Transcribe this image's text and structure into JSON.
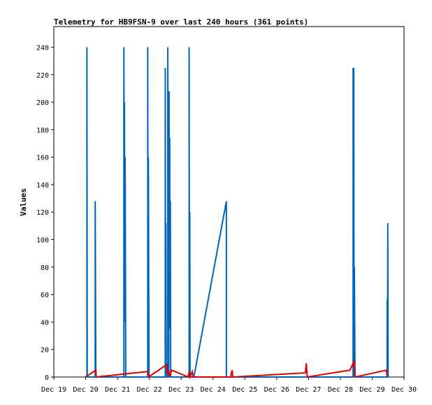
{
  "chart_data": {
    "type": "line",
    "title": "Telemetry for HB9FSN-9 over last 240 hours (361 points)",
    "ylabel": "Values",
    "xlabel": "",
    "ylim": [
      0,
      255
    ],
    "yticks": [
      0,
      20,
      40,
      60,
      80,
      100,
      120,
      140,
      160,
      180,
      200,
      220,
      240
    ],
    "xlim": [
      0,
      11
    ],
    "xticks": [
      {
        "x": 0,
        "label": "Dec 19"
      },
      {
        "x": 1,
        "label": "Dec 20"
      },
      {
        "x": 2,
        "label": "Dec 21"
      },
      {
        "x": 3,
        "label": "Dec 22"
      },
      {
        "x": 4,
        "label": "Dec 23"
      },
      {
        "x": 5,
        "label": "Dec 24"
      },
      {
        "x": 6,
        "label": "Dec 25"
      },
      {
        "x": 7,
        "label": "Dec 26"
      },
      {
        "x": 8,
        "label": "Dec 27"
      },
      {
        "x": 9,
        "label": "Dec 28"
      },
      {
        "x": 10,
        "label": "Dec 29"
      },
      {
        "x": 11,
        "label": "Dec 30"
      }
    ],
    "grid": false,
    "legend": "none",
    "colors": {
      "series1": "#0066bb",
      "series2": "#dd0000",
      "axis": "#000000",
      "border": "#000000"
    },
    "series": [
      {
        "color": "#0066bb",
        "points": [
          [
            1.04,
            0
          ],
          [
            1.04,
            240
          ],
          [
            1.05,
            0
          ],
          [
            1.3,
            0
          ],
          [
            1.3,
            128
          ],
          [
            1.31,
            65
          ],
          [
            1.32,
            0
          ],
          [
            2.2,
            0
          ],
          [
            2.2,
            240
          ],
          [
            2.21,
            128
          ],
          [
            2.22,
            200
          ],
          [
            2.23,
            40
          ],
          [
            2.24,
            160
          ],
          [
            2.25,
            80
          ],
          [
            2.26,
            0
          ],
          [
            2.95,
            0
          ],
          [
            2.95,
            240
          ],
          [
            2.96,
            0
          ],
          [
            2.97,
            160
          ],
          [
            2.98,
            80
          ],
          [
            2.99,
            0
          ],
          [
            3.5,
            0
          ],
          [
            3.5,
            225
          ],
          [
            3.51,
            0
          ],
          [
            3.52,
            112
          ],
          [
            3.53,
            0
          ],
          [
            3.58,
            0
          ],
          [
            3.58,
            240
          ],
          [
            3.59,
            0
          ],
          [
            3.6,
            120
          ],
          [
            3.61,
            0
          ],
          [
            3.62,
            208
          ],
          [
            3.63,
            35
          ],
          [
            3.64,
            174
          ],
          [
            3.65,
            40
          ],
          [
            3.66,
            128
          ],
          [
            3.67,
            0
          ],
          [
            4.25,
            0
          ],
          [
            4.25,
            240
          ],
          [
            4.26,
            0
          ],
          [
            4.27,
            120
          ],
          [
            4.28,
            0
          ],
          [
            4.4,
            0
          ],
          [
            5.42,
            128
          ],
          [
            5.42,
            0
          ],
          [
            9.4,
            0
          ],
          [
            9.4,
            225
          ],
          [
            9.41,
            0
          ],
          [
            9.42,
            225
          ],
          [
            9.43,
            0
          ],
          [
            9.44,
            80
          ],
          [
            9.45,
            40
          ],
          [
            9.46,
            0
          ],
          [
            10.47,
            0
          ],
          [
            10.47,
            56
          ],
          [
            10.48,
            0
          ],
          [
            10.49,
            112
          ],
          [
            10.5,
            0
          ]
        ]
      },
      {
        "color": "#dd0000",
        "points": [
          [
            1.0,
            0
          ],
          [
            1.32,
            5
          ],
          [
            1.33,
            0
          ],
          [
            2.95,
            4
          ],
          [
            2.97,
            0
          ],
          [
            3.55,
            9
          ],
          [
            3.57,
            2
          ],
          [
            3.6,
            5
          ],
          [
            3.62,
            3
          ],
          [
            3.64,
            0
          ],
          [
            3.7,
            5
          ],
          [
            4.22,
            0
          ],
          [
            4.25,
            4
          ],
          [
            4.28,
            0
          ],
          [
            4.35,
            4
          ],
          [
            4.38,
            0
          ],
          [
            5.55,
            0
          ],
          [
            5.6,
            5
          ],
          [
            5.62,
            0
          ],
          [
            7.9,
            3
          ],
          [
            7.93,
            10
          ],
          [
            7.96,
            0
          ],
          [
            9.3,
            5
          ],
          [
            9.44,
            12
          ],
          [
            9.46,
            0
          ],
          [
            10.45,
            5
          ],
          [
            10.47,
            0
          ]
        ]
      }
    ]
  }
}
